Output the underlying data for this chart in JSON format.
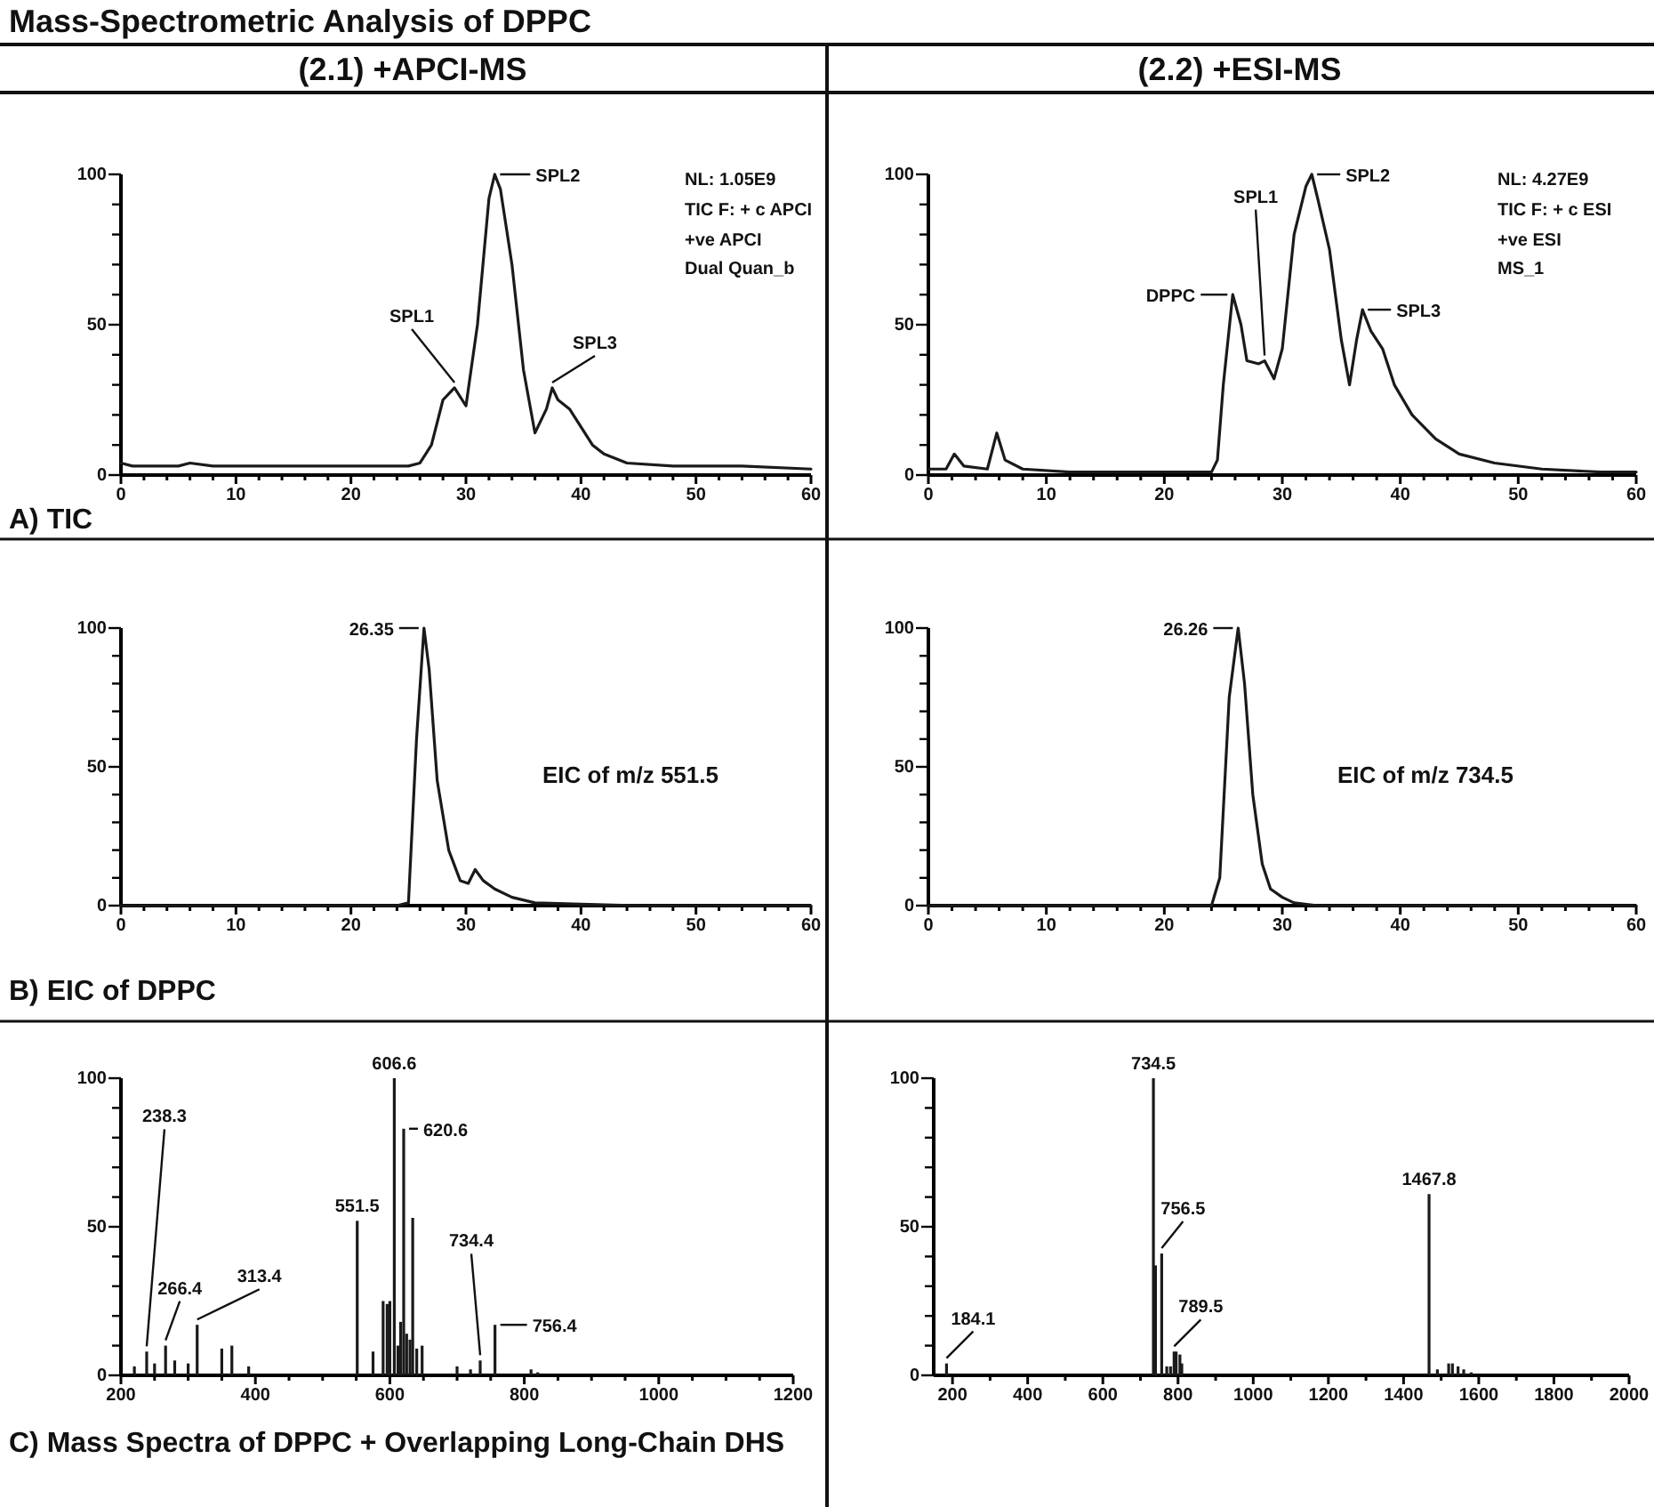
{
  "chart_data": [
    {
      "type": "line",
      "title": "Mass-Spectrometric Analysis of DPPC",
      "subtitle": "(2.1) +APCI-MS",
      "color": "#1a1a1a",
      "x": [
        0,
        1,
        3,
        5,
        6,
        8,
        12,
        16,
        20,
        24,
        25,
        26,
        27,
        28,
        29,
        30,
        31,
        32,
        32.5,
        33,
        34,
        35,
        36,
        37,
        37.5,
        38,
        39,
        40,
        41,
        42,
        44,
        48,
        54,
        60
      ],
      "values": [
        4,
        3,
        3,
        3,
        4,
        3,
        3,
        3,
        3,
        3,
        3,
        4,
        10,
        25,
        29,
        23,
        50,
        92,
        100,
        95,
        70,
        35,
        14,
        22,
        29,
        25,
        22,
        16,
        10,
        7,
        4,
        3,
        3,
        2
      ],
      "xlim": [
        0,
        60
      ],
      "ylim": [
        0,
        100
      ],
      "xticks": [
        0,
        {
          "value": 2,
          "label": null
        },
        {
          "value": 4,
          "label": null
        },
        {
          "value": 6,
          "label": null
        },
        {
          "value": 8,
          "label": null
        },
        10,
        {
          "value": 12,
          "label": null
        },
        {
          "value": 14,
          "label": null
        },
        {
          "value": 16,
          "label": null
        },
        {
          "value": 18,
          "label": null
        },
        20,
        {
          "value": 22,
          "label": null
        },
        {
          "value": 24,
          "label": null
        },
        {
          "value": 26,
          "label": null
        },
        {
          "value": 28,
          "label": null
        },
        30,
        {
          "value": 32,
          "label": null
        },
        {
          "value": 34,
          "label": null
        },
        {
          "value": 36,
          "label": null
        },
        {
          "value": 38,
          "label": null
        },
        40,
        {
          "value": 42,
          "label": null
        },
        {
          "value": 44,
          "label": null
        },
        {
          "value": 46,
          "label": null
        },
        {
          "value": 48,
          "label": null
        },
        50,
        {
          "value": 52,
          "label": null
        },
        {
          "value": 54,
          "label": null
        },
        {
          "value": 56,
          "label": null
        },
        {
          "value": 58,
          "label": null
        },
        60
      ],
      "yticks": [
        0,
        {
          "value": 10,
          "label": null
        },
        {
          "value": 20,
          "label": null
        },
        {
          "value": 30,
          "label": null
        },
        {
          "value": 40,
          "label": null
        },
        50,
        {
          "value": 60,
          "label": null
        },
        {
          "value": 70,
          "label": null
        },
        {
          "value": 80,
          "label": null
        },
        {
          "value": 90,
          "label": null
        },
        100
      ],
      "annotations": [
        {
          "text": "SPL1",
          "x": 29,
          "y": 29
        },
        {
          "text": "SPL2",
          "x": 32.5,
          "y": 100
        },
        {
          "text": "SPL3",
          "x": 37.5,
          "y": 29
        },
        "NL: 1.05E9",
        "TIC F: + c APCI",
        "+ve APCI",
        "Dual Quan_b",
        "A) TIC"
      ]
    },
    {
      "type": "line",
      "subtitle": "(2.2) +ESI-MS",
      "color": "#1a1a1a",
      "x": [
        0,
        1.5,
        2.2,
        3,
        5,
        5.8,
        6.5,
        8,
        12,
        20,
        24,
        24.5,
        25,
        25.8,
        26.5,
        27,
        28,
        28.5,
        29.3,
        30,
        31,
        32,
        32.5,
        33,
        34,
        35,
        35.7,
        36.3,
        36.8,
        37.5,
        38.5,
        39.5,
        41,
        43,
        45,
        48,
        52,
        57,
        60
      ],
      "values": [
        2,
        2,
        7,
        3,
        2,
        14,
        5,
        2,
        1,
        1,
        1,
        5,
        30,
        60,
        50,
        38,
        37,
        38,
        32,
        42,
        80,
        96,
        100,
        92,
        75,
        45,
        30,
        45,
        55,
        48,
        42,
        30,
        20,
        12,
        7,
        4,
        2,
        1,
        1
      ],
      "xlim": [
        0,
        60
      ],
      "ylim": [
        0,
        100
      ],
      "xticks": [
        0,
        {
          "value": 2,
          "label": null
        },
        {
          "value": 4,
          "label": null
        },
        {
          "value": 6,
          "label": null
        },
        {
          "value": 8,
          "label": null
        },
        10,
        {
          "value": 12,
          "label": null
        },
        {
          "value": 14,
          "label": null
        },
        {
          "value": 16,
          "label": null
        },
        {
          "value": 18,
          "label": null
        },
        20,
        {
          "value": 22,
          "label": null
        },
        {
          "value": 24,
          "label": null
        },
        {
          "value": 26,
          "label": null
        },
        {
          "value": 28,
          "label": null
        },
        30,
        {
          "value": 32,
          "label": null
        },
        {
          "value": 34,
          "label": null
        },
        {
          "value": 36,
          "label": null
        },
        {
          "value": 38,
          "label": null
        },
        40,
        {
          "value": 42,
          "label": null
        },
        {
          "value": 44,
          "label": null
        },
        {
          "value": 46,
          "label": null
        },
        {
          "value": 48,
          "label": null
        },
        50,
        {
          "value": 52,
          "label": null
        },
        {
          "value": 54,
          "label": null
        },
        {
          "value": 56,
          "label": null
        },
        {
          "value": 58,
          "label": null
        },
        60
      ],
      "yticks": [
        0,
        {
          "value": 10,
          "label": null
        },
        {
          "value": 20,
          "label": null
        },
        {
          "value": 30,
          "label": null
        },
        {
          "value": 40,
          "label": null
        },
        50,
        {
          "value": 60,
          "label": null
        },
        {
          "value": 70,
          "label": null
        },
        {
          "value": 80,
          "label": null
        },
        {
          "value": 90,
          "label": null
        },
        100
      ],
      "annotations": [
        {
          "text": "DPPC",
          "x": 25.8,
          "y": 60
        },
        {
          "text": "SPL1",
          "x": 28.5,
          "y": 38
        },
        {
          "text": "SPL2",
          "x": 32.5,
          "y": 100
        },
        {
          "text": "SPL3",
          "x": 36.8,
          "y": 55
        },
        "NL: 4.27E9",
        "TIC F: + c ESI",
        "+ve ESI",
        "MS_1"
      ]
    },
    {
      "type": "line",
      "color": "#1a1a1a",
      "x": [
        0,
        24,
        25,
        25.7,
        26.35,
        26.8,
        27.5,
        28.5,
        29.5,
        30.2,
        30.8,
        31.5,
        32.5,
        34,
        36,
        40,
        45,
        60
      ],
      "values": [
        0,
        0,
        1,
        60,
        100,
        85,
        45,
        20,
        9,
        8,
        13,
        9,
        6,
        3,
        1,
        0.5,
        0,
        0
      ],
      "xlim": [
        0,
        60
      ],
      "ylim": [
        0,
        100
      ],
      "xticks": [
        0,
        {
          "value": 2,
          "label": null
        },
        {
          "value": 4,
          "label": null
        },
        {
          "value": 6,
          "label": null
        },
        {
          "value": 8,
          "label": null
        },
        10,
        {
          "value": 12,
          "label": null
        },
        {
          "value": 14,
          "label": null
        },
        {
          "value": 16,
          "label": null
        },
        {
          "value": 18,
          "label": null
        },
        20,
        {
          "value": 22,
          "label": null
        },
        {
          "value": 24,
          "label": null
        },
        {
          "value": 26,
          "label": null
        },
        {
          "value": 28,
          "label": null
        },
        30,
        {
          "value": 32,
          "label": null
        },
        {
          "value": 34,
          "label": null
        },
        {
          "value": 36,
          "label": null
        },
        {
          "value": 38,
          "label": null
        },
        40,
        {
          "value": 42,
          "label": null
        },
        {
          "value": 44,
          "label": null
        },
        {
          "value": 46,
          "label": null
        },
        {
          "value": 48,
          "label": null
        },
        50,
        {
          "value": 52,
          "label": null
        },
        {
          "value": 54,
          "label": null
        },
        {
          "value": 56,
          "label": null
        },
        {
          "value": 58,
          "label": null
        },
        60
      ],
      "yticks": [
        0,
        {
          "value": 10,
          "label": null
        },
        {
          "value": 20,
          "label": null
        },
        {
          "value": 30,
          "label": null
        },
        {
          "value": 40,
          "label": null
        },
        50,
        {
          "value": 60,
          "label": null
        },
        {
          "value": 70,
          "label": null
        },
        {
          "value": 80,
          "label": null
        },
        {
          "value": 90,
          "label": null
        },
        100
      ],
      "annotations": [
        {
          "text": "26.35",
          "x": 26.35,
          "y": 100
        },
        "EIC of m/z 551.5",
        "B) EIC of DPPC"
      ]
    },
    {
      "type": "line",
      "color": "#1a1a1a",
      "x": [
        0,
        24,
        24.7,
        25.5,
        26.26,
        26.8,
        27.5,
        28.3,
        29,
        30,
        31,
        33,
        60
      ],
      "values": [
        0,
        0,
        10,
        75,
        100,
        80,
        40,
        15,
        6,
        3,
        1,
        0,
        0
      ],
      "xlim": [
        0,
        60
      ],
      "ylim": [
        0,
        100
      ],
      "xticks": [
        0,
        {
          "value": 2,
          "label": null
        },
        {
          "value": 4,
          "label": null
        },
        {
          "value": 6,
          "label": null
        },
        {
          "value": 8,
          "label": null
        },
        10,
        {
          "value": 12,
          "label": null
        },
        {
          "value": 14,
          "label": null
        },
        {
          "value": 16,
          "label": null
        },
        {
          "value": 18,
          "label": null
        },
        20,
        {
          "value": 22,
          "label": null
        },
        {
          "value": 24,
          "label": null
        },
        {
          "value": 26,
          "label": null
        },
        {
          "value": 28,
          "label": null
        },
        30,
        {
          "value": 32,
          "label": null
        },
        {
          "value": 34,
          "label": null
        },
        {
          "value": 36,
          "label": null
        },
        {
          "value": 38,
          "label": null
        },
        40,
        {
          "value": 42,
          "label": null
        },
        {
          "value": 44,
          "label": null
        },
        {
          "value": 46,
          "label": null
        },
        {
          "value": 48,
          "label": null
        },
        50,
        {
          "value": 52,
          "label": null
        },
        {
          "value": 54,
          "label": null
        },
        {
          "value": 56,
          "label": null
        },
        {
          "value": 58,
          "label": null
        },
        60
      ],
      "yticks": [
        0,
        {
          "value": 10,
          "label": null
        },
        {
          "value": 20,
          "label": null
        },
        {
          "value": 30,
          "label": null
        },
        {
          "value": 40,
          "label": null
        },
        50,
        {
          "value": 60,
          "label": null
        },
        {
          "value": 70,
          "label": null
        },
        {
          "value": 80,
          "label": null
        },
        {
          "value": 90,
          "label": null
        },
        100
      ],
      "annotations": [
        {
          "text": "26.26",
          "x": 26.26,
          "y": 100
        },
        "EIC of m/z 734.5"
      ]
    },
    {
      "type": "bar",
      "color": "#1a1a1a",
      "x": [
        220,
        238.3,
        250,
        266.4,
        280,
        300,
        313.4,
        350,
        365,
        390,
        551.5,
        575,
        590,
        596,
        600,
        606.6,
        612,
        616,
        620.6,
        625,
        630,
        634,
        640,
        648,
        700,
        720,
        734.4,
        756.4,
        810,
        820
      ],
      "values": [
        3,
        8,
        4,
        10,
        5,
        4,
        17,
        9,
        10,
        3,
        52,
        8,
        25,
        24,
        25,
        100,
        10,
        18,
        83,
        14,
        12,
        53,
        9,
        10,
        3,
        2,
        5,
        17,
        2,
        1
      ],
      "xlim": [
        200,
        1200
      ],
      "ylim": [
        0,
        100
      ],
      "xticks": [
        200,
        {
          "value": 250,
          "label": null
        },
        {
          "value": 300,
          "label": null
        },
        {
          "value": 350,
          "label": null
        },
        400,
        {
          "value": 450,
          "label": null
        },
        {
          "value": 500,
          "label": null
        },
        {
          "value": 550,
          "label": null
        },
        600,
        {
          "value": 650,
          "label": null
        },
        {
          "value": 700,
          "label": null
        },
        {
          "value": 750,
          "label": null
        },
        800,
        {
          "value": 850,
          "label": null
        },
        {
          "value": 900,
          "label": null
        },
        {
          "value": 950,
          "label": null
        },
        1000,
        {
          "value": 1050,
          "label": null
        },
        {
          "value": 1100,
          "label": null
        },
        {
          "value": 1150,
          "label": null
        },
        1200
      ],
      "yticks": [
        0,
        {
          "value": 10,
          "label": null
        },
        {
          "value": 20,
          "label": null
        },
        {
          "value": 30,
          "label": null
        },
        {
          "value": 40,
          "label": null
        },
        50,
        {
          "value": 60,
          "label": null
        },
        {
          "value": 70,
          "label": null
        },
        {
          "value": 80,
          "label": null
        },
        {
          "value": 90,
          "label": null
        },
        100
      ],
      "annotations": [
        {
          "text": "238.3",
          "x": 238.3,
          "y": 8
        },
        {
          "text": "266.4",
          "x": 266.4,
          "y": 10
        },
        {
          "text": "313.4",
          "x": 313.4,
          "y": 17
        },
        {
          "text": "551.5",
          "x": 551.5,
          "y": 52
        },
        {
          "text": "606.6",
          "x": 606.6,
          "y": 100
        },
        {
          "text": "620.6",
          "x": 620.6,
          "y": 83
        },
        {
          "text": "734.4",
          "x": 734.4,
          "y": 5
        },
        {
          "text": "756.4",
          "x": 756.4,
          "y": 17
        },
        "C) Mass Spectra of DPPC + Overlapping Long-Chain DHS"
      ]
    },
    {
      "type": "bar",
      "color": "#1a1a1a",
      "x": [
        184.1,
        734.5,
        740,
        756.5,
        770,
        780,
        789.5,
        795,
        805,
        810,
        1467.8,
        1490,
        1520,
        1530,
        1545,
        1560,
        1580
      ],
      "values": [
        4,
        100,
        37,
        41,
        3,
        3,
        8,
        8,
        7,
        4,
        61,
        2,
        4,
        4,
        3,
        2,
        1
      ],
      "xlim": [
        150,
        2000
      ],
      "ylim": [
        0,
        100
      ],
      "xticks": [
        200,
        {
          "value": 300,
          "label": null
        },
        400,
        {
          "value": 500,
          "label": null
        },
        600,
        {
          "value": 700,
          "label": null
        },
        800,
        {
          "value": 900,
          "label": null
        },
        1000,
        {
          "value": 1100,
          "label": null
        },
        1200,
        {
          "value": 1300,
          "label": null
        },
        1400,
        {
          "value": 1500,
          "label": null
        },
        1600,
        {
          "value": 1700,
          "label": null
        },
        1800,
        {
          "value": 1900,
          "label": null
        },
        2000
      ],
      "yticks": [
        0,
        {
          "value": 10,
          "label": null
        },
        {
          "value": 20,
          "label": null
        },
        {
          "value": 30,
          "label": null
        },
        {
          "value": 40,
          "label": null
        },
        50,
        {
          "value": 60,
          "label": null
        },
        {
          "value": 70,
          "label": null
        },
        {
          "value": 80,
          "label": null
        },
        {
          "value": 90,
          "label": null
        },
        100
      ],
      "annotations": [
        {
          "text": "184.1",
          "x": 184.1,
          "y": 4
        },
        {
          "text": "734.5",
          "x": 734.5,
          "y": 100
        },
        {
          "text": "756.5",
          "x": 756.5,
          "y": 41
        },
        {
          "text": "789.5",
          "x": 789.5,
          "y": 8
        },
        {
          "text": "1467.8",
          "x": 1467.8,
          "y": 61
        }
      ]
    }
  ]
}
